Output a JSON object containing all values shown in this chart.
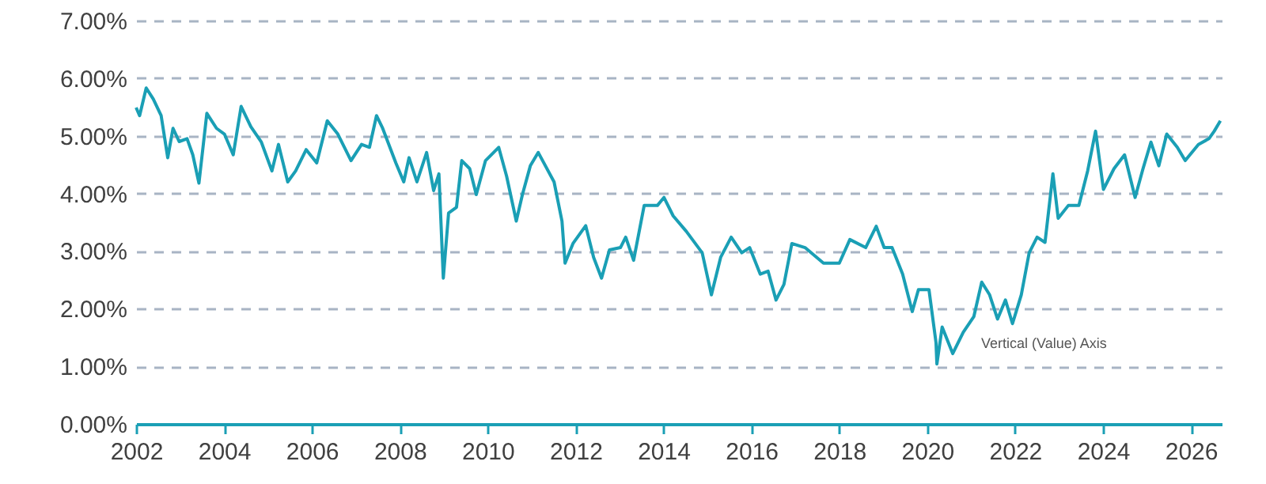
{
  "chart_data": {
    "type": "line",
    "x": [
      2002.0,
      2002.08,
      2002.23,
      2002.39,
      2002.57,
      2002.72,
      2002.84,
      2002.98,
      2003.16,
      2003.29,
      2003.43,
      2003.61,
      2003.83,
      2004.01,
      2004.21,
      2004.39,
      2004.61,
      2004.85,
      2005.09,
      2005.24,
      2005.45,
      2005.63,
      2005.87,
      2006.11,
      2006.35,
      2006.59,
      2006.89,
      2007.13,
      2007.31,
      2007.47,
      2007.61,
      2007.91,
      2008.09,
      2008.21,
      2008.39,
      2008.61,
      2008.77,
      2008.89,
      2008.99,
      2009.11,
      2009.29,
      2009.41,
      2009.59,
      2009.74,
      2009.95,
      2010.25,
      2010.43,
      2010.65,
      2010.79,
      2010.97,
      2011.15,
      2011.51,
      2011.69,
      2011.76,
      2011.94,
      2012.23,
      2012.41,
      2012.59,
      2012.77,
      2013.02,
      2013.14,
      2013.32,
      2013.56,
      2013.86,
      2014.01,
      2014.22,
      2014.52,
      2014.88,
      2015.09,
      2015.3,
      2015.54,
      2015.78,
      2015.96,
      2016.2,
      2016.38,
      2016.56,
      2016.74,
      2016.92,
      2017.22,
      2017.64,
      2018.0,
      2018.24,
      2018.6,
      2018.84,
      2019.02,
      2019.2,
      2019.44,
      2019.66,
      2019.8,
      2020.04,
      2020.2,
      2020.22,
      2020.34,
      2020.58,
      2020.82,
      2021.06,
      2021.24,
      2021.42,
      2021.6,
      2021.78,
      2021.94,
      2022.14,
      2022.32,
      2022.5,
      2022.68,
      2022.86,
      2022.98,
      2023.21,
      2023.45,
      2023.65,
      2023.83,
      2024.01,
      2024.25,
      2024.49,
      2024.73,
      2024.91,
      2025.09,
      2025.27,
      2025.45,
      2025.69,
      2025.87,
      2026.17,
      2026.41,
      2026.53,
      2026.67
    ],
    "series": [
      {
        "color": "#1a9fb5",
        "values": [
          5.49,
          5.35,
          5.83,
          5.64,
          5.35,
          4.62,
          5.13,
          4.9,
          4.95,
          4.67,
          4.18,
          5.39,
          5.13,
          5.03,
          4.67,
          5.51,
          5.16,
          4.89,
          4.39,
          4.85,
          4.2,
          4.39,
          4.76,
          4.53,
          5.26,
          5.03,
          4.57,
          4.85,
          4.8,
          5.35,
          5.13,
          4.53,
          4.2,
          4.62,
          4.2,
          4.71,
          4.05,
          4.34,
          2.53,
          3.66,
          3.76,
          4.57,
          4.43,
          3.98,
          4.57,
          4.8,
          4.3,
          3.52,
          3.98,
          4.48,
          4.71,
          4.2,
          3.52,
          2.79,
          3.13,
          3.44,
          2.89,
          2.53,
          3.02,
          3.06,
          3.24,
          2.84,
          3.79,
          3.79,
          3.93,
          3.61,
          3.34,
          2.97,
          2.24,
          2.89,
          3.24,
          2.97,
          3.06,
          2.6,
          2.65,
          2.15,
          2.42,
          3.13,
          3.06,
          2.79,
          2.79,
          3.2,
          3.06,
          3.43,
          3.06,
          3.06,
          2.6,
          1.95,
          2.33,
          2.33,
          1.41,
          1.04,
          1.68,
          1.22,
          1.59,
          1.86,
          2.46,
          2.24,
          1.82,
          2.15,
          1.74,
          2.24,
          2.97,
          3.24,
          3.15,
          4.34,
          3.57,
          3.79,
          3.79,
          4.39,
          5.08,
          4.07,
          4.43,
          4.67,
          3.93,
          4.43,
          4.89,
          4.48,
          5.03,
          4.8,
          4.57,
          4.85,
          4.95,
          5.08,
          5.26
        ]
      }
    ],
    "xlim": [
      2002,
      2026.7
    ],
    "xticks": [
      2002,
      2004,
      2006,
      2008,
      2010,
      2012,
      2014,
      2016,
      2018,
      2020,
      2022,
      2024,
      2026
    ],
    "ylim": [
      0,
      7
    ],
    "yticks": [
      {
        "value": 0,
        "label": "0.00%"
      },
      {
        "value": 1,
        "label": "1.00%"
      },
      {
        "value": 2,
        "label": "2.00%"
      },
      {
        "value": 3,
        "label": "3.00%"
      },
      {
        "value": 4,
        "label": "4.00%"
      },
      {
        "value": 5,
        "label": "5.00%"
      },
      {
        "value": 6,
        "label": "6.00%"
      },
      {
        "value": 7,
        "label": "7.00%"
      }
    ],
    "grid": "y",
    "line_style": "solid",
    "annotations": [
      "Vertical (Value) Axis"
    ]
  }
}
